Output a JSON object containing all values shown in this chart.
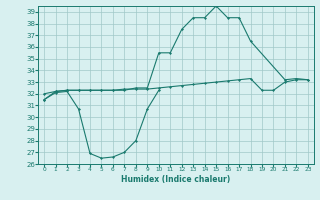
{
  "x": [
    0,
    1,
    2,
    3,
    4,
    5,
    6,
    7,
    8,
    9,
    10,
    11,
    12,
    13,
    14,
    15,
    16,
    17,
    18,
    19,
    20,
    21,
    22,
    23
  ],
  "y_max": [
    31.5,
    32.2,
    32.3,
    32.3,
    32.3,
    32.3,
    32.3,
    32.3,
    32.5,
    32.5,
    35.5,
    35.5,
    37.5,
    38.5,
    38.5,
    39.5,
    38.5,
    38.5,
    36.5,
    null,
    null,
    33.2,
    33.3,
    33.2
  ],
  "y_avg": [
    32.0,
    32.2,
    32.3,
    32.3,
    32.3,
    32.3,
    32.3,
    32.4,
    32.4,
    32.4,
    32.5,
    32.6,
    32.7,
    32.8,
    32.9,
    33.0,
    33.1,
    33.2,
    33.3,
    32.3,
    32.3,
    33.0,
    33.2,
    33.2
  ],
  "y_min": [
    31.5,
    32.1,
    32.2,
    30.7,
    26.9,
    26.5,
    26.6,
    27.0,
    28.0,
    30.7,
    32.3,
    null,
    null,
    null,
    null,
    null,
    null,
    null,
    null,
    null,
    null,
    null,
    null,
    null
  ],
  "line_color": "#1a7a6e",
  "bg_color": "#d8f0f0",
  "grid_color": "#a0c8c8",
  "xlabel": "Humidex (Indice chaleur)",
  "xlim": [
    -0.5,
    23.5
  ],
  "ylim": [
    26,
    39.5
  ],
  "yticks": [
    26,
    27,
    28,
    29,
    30,
    31,
    32,
    33,
    34,
    35,
    36,
    37,
    38,
    39
  ],
  "xticks": [
    0,
    1,
    2,
    3,
    4,
    5,
    6,
    7,
    8,
    9,
    10,
    11,
    12,
    13,
    14,
    15,
    16,
    17,
    18,
    19,
    20,
    21,
    22,
    23
  ]
}
